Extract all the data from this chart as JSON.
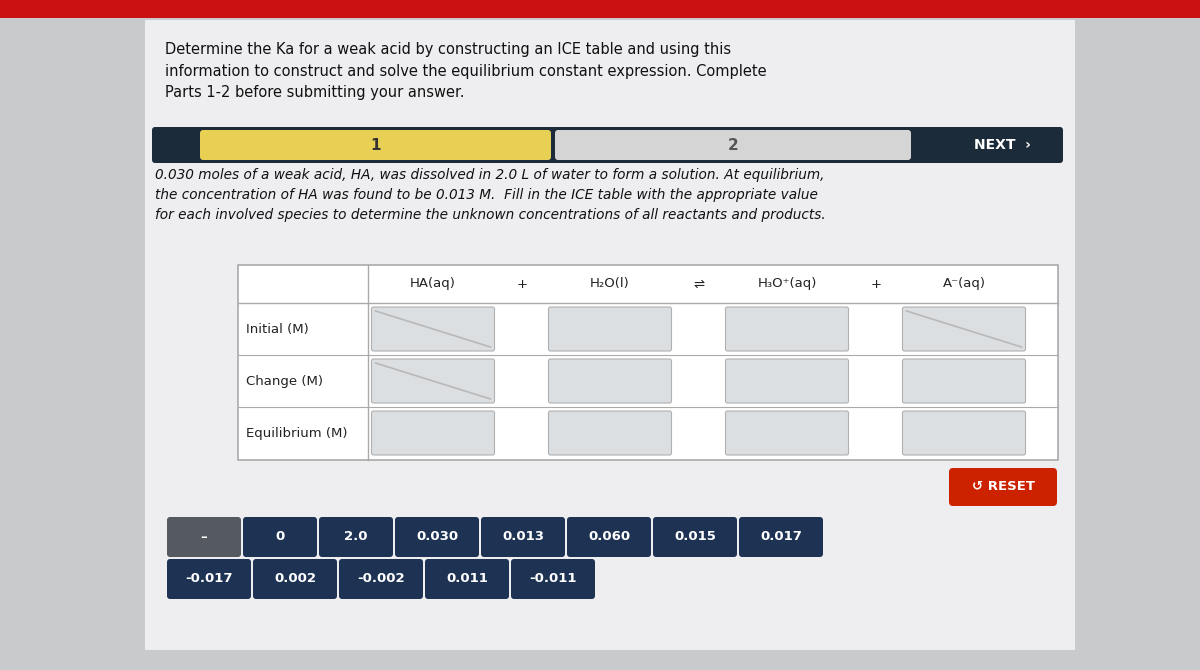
{
  "title_text": "Determine the Ka for a weak acid by constructing an ICE table and using this\ninformation to construct and solve the equilibrium constant expression. Complete\nParts 1-2 before submitting your answer.",
  "problem_text": "0.030 moles of a weak acid, HA, was dissolved in 2.0 L of water to form a solution. At equilibrium,\nthe concentration of HA was found to be 0.013 M.  Fill in the ICE table with the appropriate value\nfor each involved species to determine the unknown concentrations of all reactants and products.",
  "nav_bar_bg": "#1c2b3a",
  "nav_sec1_color": "#e8d055",
  "nav_sec2_color": "#d5d5d5",
  "nav_next_color": "#1c2b3a",
  "table_headers": [
    "HA(aq)",
    "+",
    "H₂O(l)",
    "⇌",
    "H₃O⁺(aq)",
    "+",
    "A⁻(aq)"
  ],
  "row_labels": [
    "Initial (M)",
    "Change (M)",
    "Equilibrium (M)"
  ],
  "background_color": "#c8cacc",
  "panel_color": "#eeeef0",
  "cell_color": "#dcdfe2",
  "answer_buttons_row1": [
    "–",
    "0",
    "2.0",
    "0.030",
    "0.013",
    "0.060",
    "0.015",
    "0.017"
  ],
  "answer_buttons_row2": [
    "-0.017",
    "0.002",
    "-0.002",
    "0.011",
    "-0.011"
  ],
  "button_bg": "#1e3254",
  "button_dark_bg": "#555a60",
  "button_text_color": "#ffffff",
  "reset_button_color": "#cc2200",
  "reset_text": "↺ RESET",
  "top_bar_color": "#cc1111"
}
